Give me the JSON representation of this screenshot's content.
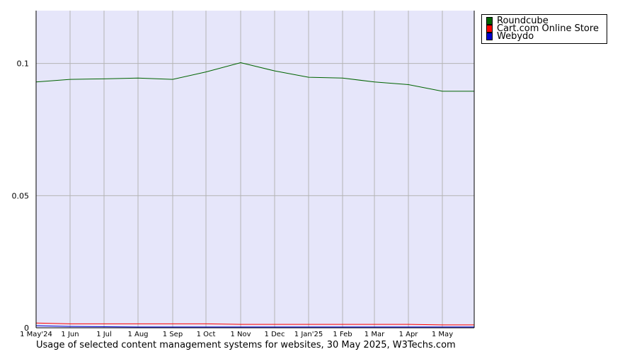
{
  "chart_data": {
    "type": "line",
    "title": "",
    "caption": "Usage of selected content management systems for websites, 30 May 2025, W3Techs.com",
    "x_labels": [
      "1 May'24",
      "1 Jun",
      "1 Jul",
      "1 Aug",
      "1 Sep",
      "1 Oct",
      "1 Nov",
      "1 Dec",
      "1 Jan'25",
      "1 Feb",
      "1 Mar",
      "1 Apr",
      "1 May"
    ],
    "x_end": "30 May 2025",
    "y_ticks": [
      0,
      0.05,
      0.1
    ],
    "y_tick_labels": [
      "0",
      "0.05",
      "0.1"
    ],
    "ylim": [
      0,
      0.12
    ],
    "grid": true,
    "legend_position": "top-right",
    "series": [
      {
        "name": "Roundcube",
        "color": "#006400",
        "values": [
          0.093,
          0.094,
          0.0942,
          0.0945,
          0.094,
          0.0968,
          0.1003,
          0.0972,
          0.0948,
          0.0945,
          0.093,
          0.092,
          0.0895,
          0.0895
        ]
      },
      {
        "name": "Cart.com Online Store",
        "color": "#ff0000",
        "values": [
          0.0018,
          0.0015,
          0.0015,
          0.0015,
          0.0015,
          0.0015,
          0.0013,
          0.0013,
          0.0013,
          0.0013,
          0.0013,
          0.0013,
          0.0011,
          0.0011
        ]
      },
      {
        "name": "Webydo",
        "color": "#0000cd",
        "values": [
          0.0008,
          0.0005,
          0.0004,
          0.0003,
          0.0003,
          0.0003,
          0.0003,
          0.0003,
          0.0003,
          0.0003,
          0.0003,
          0.0003,
          0.0003,
          0.0003
        ]
      }
    ]
  }
}
